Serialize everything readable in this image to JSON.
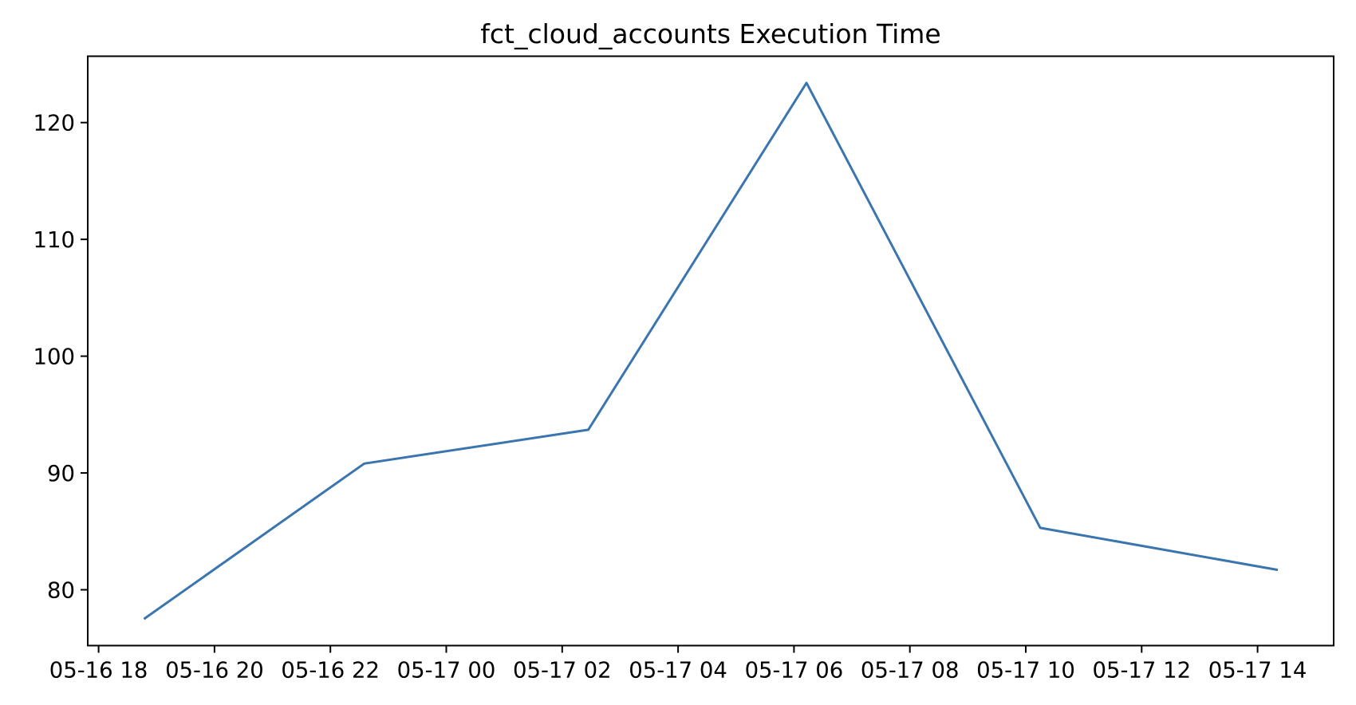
{
  "chart_data": {
    "type": "line",
    "title": "fct_cloud_accounts Execution Time",
    "xlabel": "",
    "ylabel": "",
    "x_ticks": [
      "05-16 18",
      "05-16 20",
      "05-16 22",
      "05-17 00",
      "05-17 02",
      "05-17 04",
      "05-17 06",
      "05-17 08",
      "05-17 10",
      "05-17 12",
      "05-17 14"
    ],
    "y_ticks": [
      80,
      90,
      100,
      110,
      120
    ],
    "xlim": [
      "05-16 17:50",
      "05-17 15:00"
    ],
    "ylim": [
      75.3,
      125.6
    ],
    "grid": false,
    "legend": "none",
    "line_color": "#3b75af",
    "series": [
      {
        "x": [
          "05-16 18:47",
          "05-16 22:35",
          "05-17 02:27",
          "05-17 06:13",
          "05-17 10:15",
          "05-17 14:21"
        ],
        "values": [
          77.5,
          90.8,
          93.7,
          123.4,
          85.3,
          81.7
        ]
      }
    ]
  }
}
